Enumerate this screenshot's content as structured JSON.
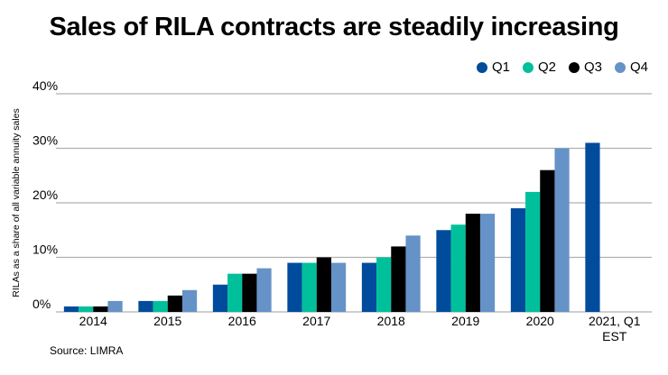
{
  "chart_data": {
    "type": "bar",
    "title": "Sales of RILA contracts are steadily increasing",
    "ylabel": "RILAs as a share of all variable annuity sales",
    "xlabel": "",
    "categories": [
      "2014",
      "2015",
      "2016",
      "2017",
      "2018",
      "2019",
      "2020",
      "2021, Q1 EST"
    ],
    "series": [
      {
        "name": "Q1",
        "color": "#004b9c",
        "values": [
          1,
          2,
          5,
          9,
          9,
          15,
          19,
          31
        ]
      },
      {
        "name": "Q2",
        "color": "#00c09c",
        "values": [
          1,
          2,
          7,
          9,
          10,
          16,
          22,
          null
        ]
      },
      {
        "name": "Q3",
        "color": "#000000",
        "values": [
          1,
          3,
          7,
          10,
          12,
          18,
          26,
          null
        ]
      },
      {
        "name": "Q4",
        "color": "#6593c7",
        "values": [
          2,
          4,
          8,
          9,
          14,
          18,
          30,
          null
        ]
      }
    ],
    "ylim": [
      0,
      40
    ],
    "yticks": [
      "0%",
      "10%",
      "20%",
      "30%",
      "40%"
    ],
    "grid": true,
    "legend": "top-right",
    "source": "Source: LIMRA"
  }
}
